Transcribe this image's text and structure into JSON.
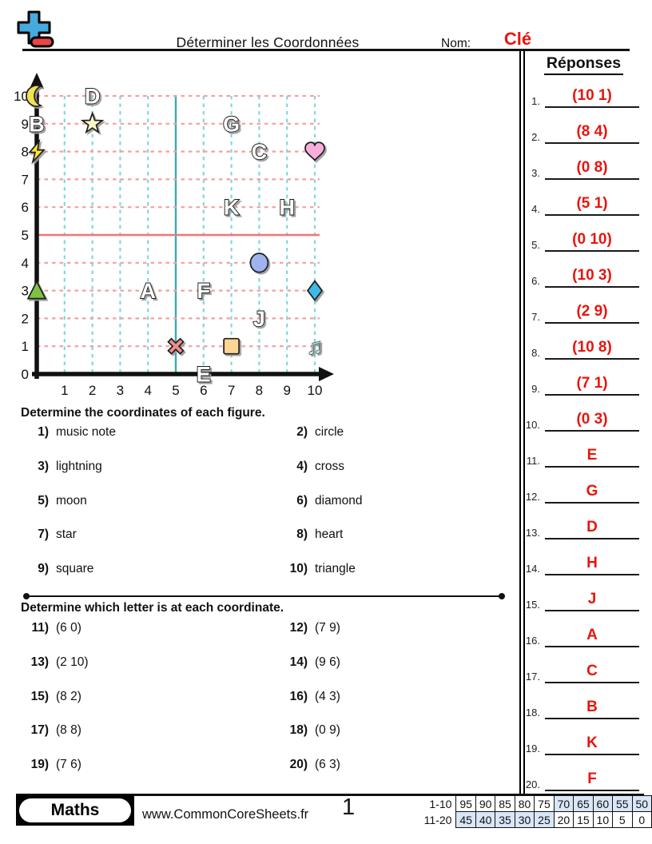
{
  "header": {
    "title": "Déterminer les Coordonnées",
    "name_label": "Nom:",
    "name_value": "Clé",
    "accent_red": "#e8150d",
    "logo": {
      "name": "plus-minus-logo",
      "plus_color": "#45aadd",
      "minus_color": "#ee4446"
    }
  },
  "answers": {
    "title": "Réponses",
    "items": [
      {
        "num": "1.",
        "value": "(10 1)"
      },
      {
        "num": "2.",
        "value": "(8 4)"
      },
      {
        "num": "3.",
        "value": "(0 8)"
      },
      {
        "num": "4.",
        "value": "(5 1)"
      },
      {
        "num": "5.",
        "value": "(0 10)"
      },
      {
        "num": "6.",
        "value": "(10 3)"
      },
      {
        "num": "7.",
        "value": "(2 9)"
      },
      {
        "num": "8.",
        "value": "(10 8)"
      },
      {
        "num": "9.",
        "value": "(7 1)"
      },
      {
        "num": "10.",
        "value": "(0 3)"
      },
      {
        "num": "11.",
        "value": "E"
      },
      {
        "num": "12.",
        "value": "G"
      },
      {
        "num": "13.",
        "value": "D"
      },
      {
        "num": "14.",
        "value": "H"
      },
      {
        "num": "15.",
        "value": "J"
      },
      {
        "num": "16.",
        "value": "A"
      },
      {
        "num": "17.",
        "value": "C"
      },
      {
        "num": "18.",
        "value": "B"
      },
      {
        "num": "19.",
        "value": "K"
      },
      {
        "num": "20.",
        "value": "F"
      }
    ]
  },
  "sections": [
    {
      "heading": "Determine the coordinates of each figure.",
      "questions": [
        {
          "num": "1)",
          "text": "music note"
        },
        {
          "num": "2)",
          "text": "circle"
        },
        {
          "num": "3)",
          "text": "lightning"
        },
        {
          "num": "4)",
          "text": "cross"
        },
        {
          "num": "5)",
          "text": "moon"
        },
        {
          "num": "6)",
          "text": "diamond"
        },
        {
          "num": "7)",
          "text": "star"
        },
        {
          "num": "8)",
          "text": "heart"
        },
        {
          "num": "9)",
          "text": "square"
        },
        {
          "num": "10)",
          "text": "triangle"
        }
      ]
    },
    {
      "heading": "Determine which letter is at each coordinate.",
      "questions": [
        {
          "num": "11)",
          "text": "(6 0)"
        },
        {
          "num": "12)",
          "text": "(7 9)"
        },
        {
          "num": "13)",
          "text": "(2 10)"
        },
        {
          "num": "14)",
          "text": "(9 6)"
        },
        {
          "num": "15)",
          "text": "(8 2)"
        },
        {
          "num": "16)",
          "text": "(4 3)"
        },
        {
          "num": "17)",
          "text": "(8 8)"
        },
        {
          "num": "18)",
          "text": "(0 9)"
        },
        {
          "num": "19)",
          "text": "(7 6)"
        },
        {
          "num": "20)",
          "text": "(6 3)"
        }
      ]
    }
  ],
  "footer": {
    "brand": "Maths",
    "url": "www.CommonCoreSheets.fr",
    "page_number": "1",
    "grade_shade_color": "#d9e6f8",
    "grades": [
      {
        "label": "1-10",
        "values": [
          95,
          90,
          85,
          80,
          75,
          70,
          65,
          60,
          55,
          50
        ],
        "shaded": [
          false,
          false,
          false,
          false,
          false,
          true,
          true,
          true,
          true,
          true
        ]
      },
      {
        "label": "11-20",
        "values": [
          45,
          40,
          35,
          30,
          25,
          20,
          15,
          10,
          5,
          0
        ],
        "shaded": [
          true,
          true,
          true,
          true,
          true,
          false,
          false,
          false,
          false,
          false
        ]
      }
    ]
  },
  "chart_data": {
    "type": "scatter",
    "title": "coordinate grid 0-10 by 0-10",
    "xlim": [
      0,
      10
    ],
    "ylim": [
      0,
      10
    ],
    "x_ticks": [
      1,
      2,
      3,
      4,
      5,
      6,
      7,
      8,
      9,
      10
    ],
    "y_ticks": [
      0,
      1,
      2,
      3,
      4,
      5,
      6,
      7,
      8,
      9,
      10
    ],
    "grid": {
      "vertical_dashed_color": "#82d8d8",
      "horizontal_dashed_color": "#f59f9f",
      "solid_vertical_at_x": 5,
      "solid_vertical_color": "#3aabab",
      "solid_horizontal_at_y": 5,
      "solid_horizontal_color": "#f47474",
      "axis_color": "#111111"
    },
    "letters": [
      {
        "label": "A",
        "x": 4,
        "y": 3
      },
      {
        "label": "B",
        "x": 0,
        "y": 9
      },
      {
        "label": "C",
        "x": 8,
        "y": 8
      },
      {
        "label": "D",
        "x": 2,
        "y": 10
      },
      {
        "label": "E",
        "x": 6,
        "y": 0
      },
      {
        "label": "F",
        "x": 6,
        "y": 3
      },
      {
        "label": "G",
        "x": 7,
        "y": 9
      },
      {
        "label": "H",
        "x": 9,
        "y": 6
      },
      {
        "label": "J",
        "x": 8,
        "y": 2
      },
      {
        "label": "K",
        "x": 7,
        "y": 6
      }
    ],
    "figures": [
      {
        "name": "moon",
        "x": 0,
        "y": 10,
        "color": "#f2e154"
      },
      {
        "name": "star",
        "x": 2,
        "y": 9,
        "color": "#fdf7c9"
      },
      {
        "name": "lightning",
        "x": 0,
        "y": 8,
        "color": "#ffe53d"
      },
      {
        "name": "heart",
        "x": 10,
        "y": 8,
        "color": "#f9aeda"
      },
      {
        "name": "circle",
        "x": 8,
        "y": 4,
        "color": "#9fb3ef"
      },
      {
        "name": "triangle",
        "x": 0,
        "y": 3,
        "color": "#7dc242"
      },
      {
        "name": "diamond",
        "x": 10,
        "y": 3,
        "color": "#41b9e6"
      },
      {
        "name": "cross",
        "x": 5,
        "y": 1,
        "color": "#f28b8b"
      },
      {
        "name": "square",
        "x": 7,
        "y": 1,
        "color": "#fbd593"
      },
      {
        "name": "note",
        "x": 10,
        "y": 1,
        "color": "#b5ecec"
      }
    ]
  }
}
